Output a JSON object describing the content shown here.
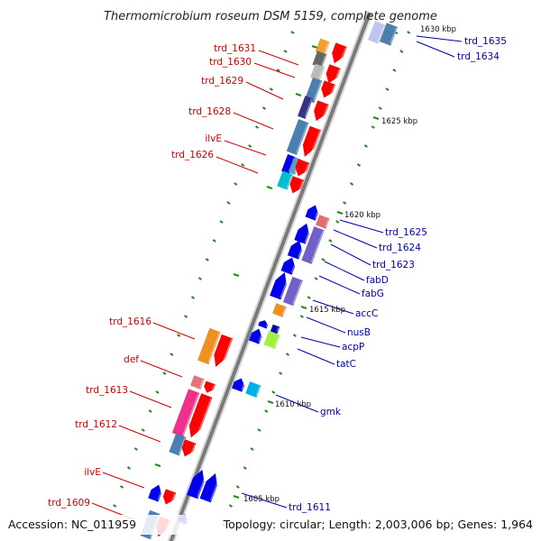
{
  "title": "Thermomicrobium roseum DSM 5159, complete genome",
  "footer": {
    "accession": "Accession: NC_011959",
    "summary": "Topology: circular; Length: 2,003,006 bp; Genes: 1,964"
  },
  "colors": {
    "backbone": "#7d7d7d",
    "forward_label": "#cc0000",
    "reverse_label": "#0000aa",
    "tick": "#228b22",
    "forward_gene": "#ff0000",
    "reverse_gene": "#0000ee"
  },
  "scale_marks": [
    "1630 kbp",
    "1625 kbp",
    "1620 kbp",
    "1615 kbp",
    "1610 kbp",
    "1605 kbp"
  ],
  "forward_labels": [
    "trd_1631",
    "trd_1630",
    "trd_1629",
    "trd_1628",
    "ilvE",
    "trd_1626",
    "trd_1616",
    "def",
    "trd_1613",
    "trd_1612",
    "ilvE",
    "trd_1609"
  ],
  "reverse_labels": [
    "trd_1635",
    "trd_1634",
    "trd_1625",
    "trd_1624",
    "trd_1623",
    "fabD",
    "fabG",
    "accC",
    "nusB",
    "acpP",
    "tatC",
    "gmk",
    "trd_1611"
  ]
}
